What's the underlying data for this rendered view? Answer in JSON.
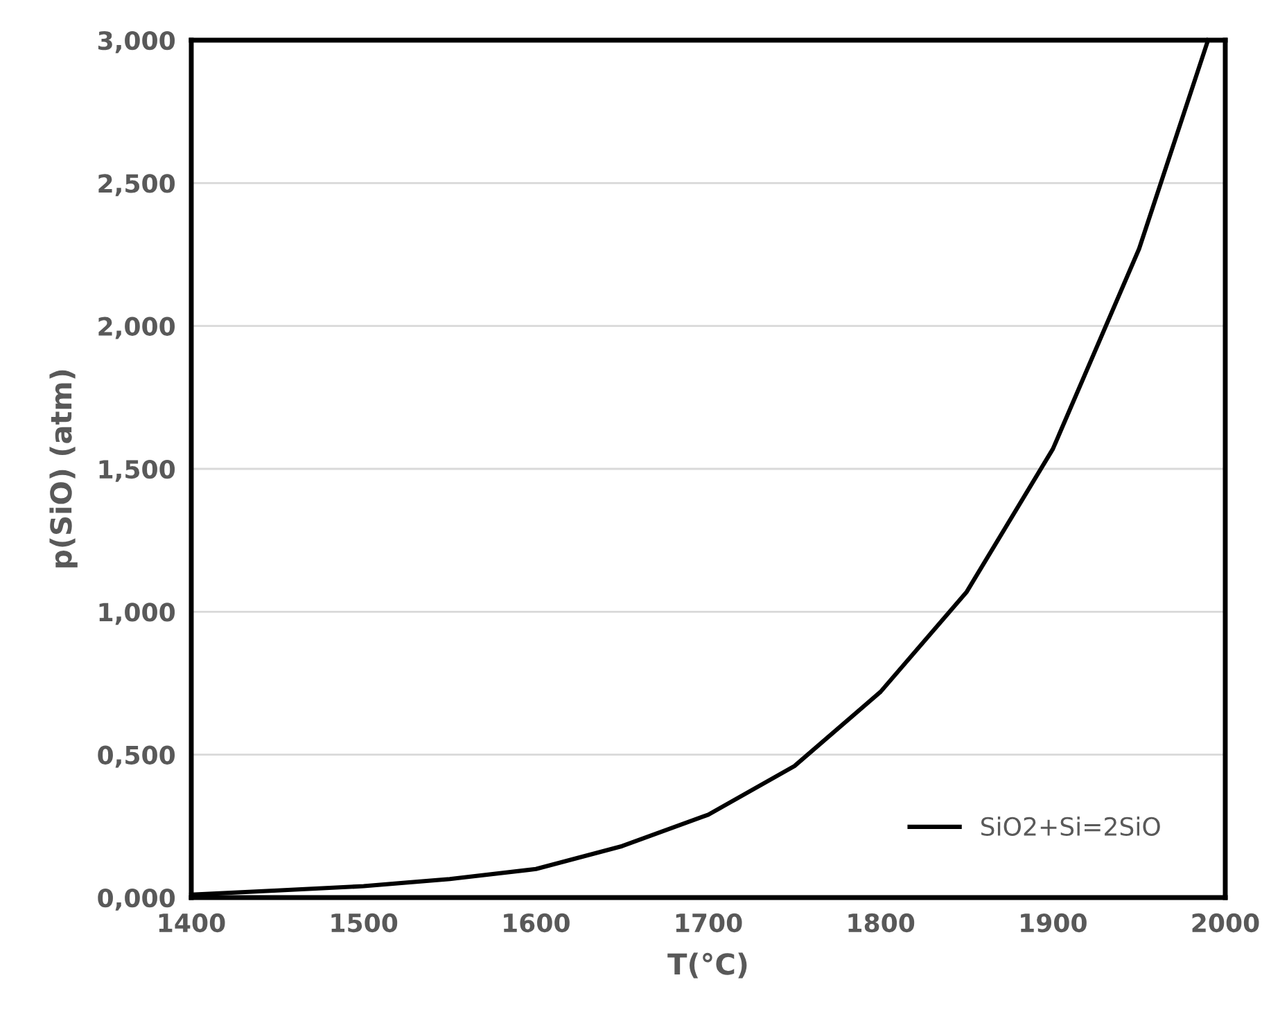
{
  "chart_data": {
    "type": "line",
    "xlabel": "T(°C)",
    "ylabel": "p(SiO) (atm)",
    "x": [
      1400,
      1450,
      1500,
      1550,
      1600,
      1650,
      1700,
      1750,
      1800,
      1850,
      1900,
      1950,
      1990
    ],
    "series": [
      {
        "name": "SiO2+Si=2SiO",
        "color": "#000000",
        "values": [
          0.01,
          0.025,
          0.04,
          0.065,
          0.1,
          0.18,
          0.29,
          0.46,
          0.72,
          1.07,
          1.57,
          2.27,
          3.0
        ]
      }
    ],
    "xlim": [
      1400,
      2000
    ],
    "xticks": [
      1400,
      1500,
      1600,
      1700,
      1800,
      1900,
      2000
    ],
    "ylim": [
      0,
      3
    ],
    "yticks": [
      {
        "value": 0,
        "label": "0,000"
      },
      {
        "value": 0.5,
        "label": "0,500"
      },
      {
        "value": 1,
        "label": "1,000"
      },
      {
        "value": 1.5,
        "label": "1,500"
      },
      {
        "value": 2,
        "label": "2,000"
      },
      {
        "value": 2.5,
        "label": "2,500"
      },
      {
        "value": 3,
        "label": "3,000"
      }
    ],
    "grid": "y",
    "legend": "bottom right",
    "marker": "none",
    "line_style": "solid"
  }
}
